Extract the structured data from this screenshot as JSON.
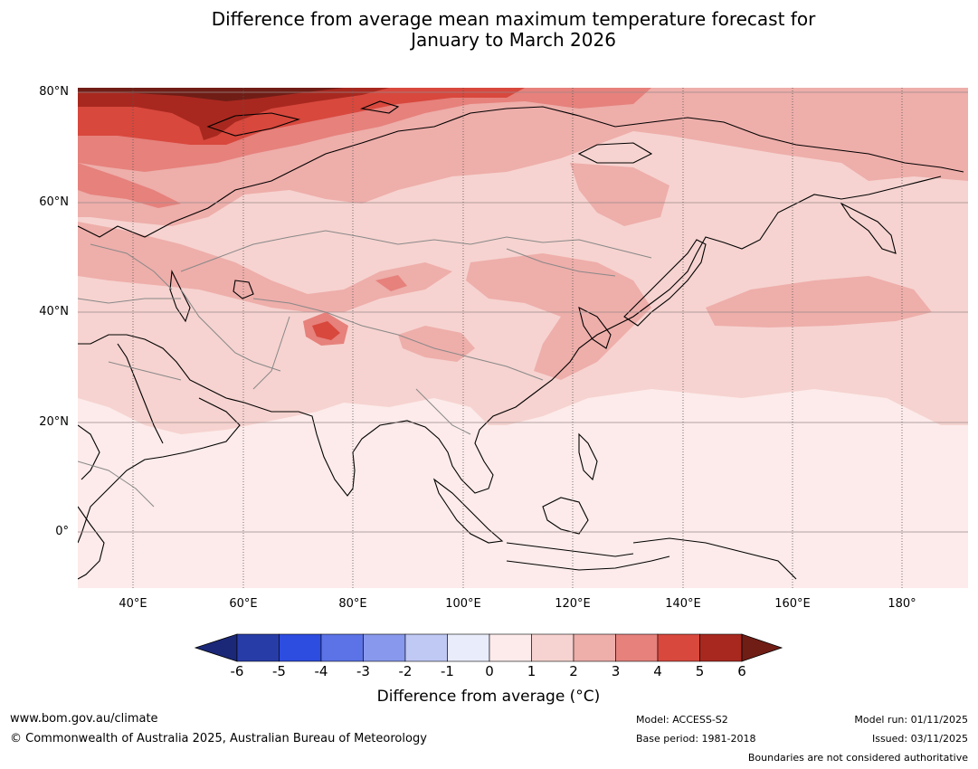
{
  "title": {
    "line1": "Difference from average mean maximum temperature forecast for",
    "line2": "January to March 2026"
  },
  "map": {
    "lat_labels": [
      "80°N",
      "60°N",
      "40°N",
      "20°N",
      "0°"
    ],
    "lon_labels": [
      "40°E",
      "60°E",
      "80°E",
      "100°E",
      "120°E",
      "140°E",
      "160°E",
      "180°"
    ]
  },
  "colorbar": {
    "ticks": [
      "-6",
      "-5",
      "-4",
      "-3",
      "-2",
      "-1",
      "0",
      "1",
      "2",
      "3",
      "4",
      "5",
      "6"
    ],
    "colors": [
      "#283ca8",
      "#2d4ce0",
      "#5b73e6",
      "#8898ec",
      "#c0c8f4",
      "#e9ecfa",
      "#fcebea",
      "#f6d3d0",
      "#eeaeaa",
      "#e6817c",
      "#d8483d",
      "#a8281f"
    ],
    "under_color": "#1b2878",
    "over_color": "#701d16",
    "label": "Difference from average (°C)"
  },
  "footer": {
    "website": "www.bom.gov.au/climate",
    "copyright": "© Commonwealth of Australia 2025, Australian Bureau of Meteorology",
    "model": "Model: ACCESS-S2",
    "base_period": "Base period: 1981-2018",
    "model_run": "Model run: 01/11/2025",
    "issued": "Issued: 03/11/2025",
    "boundaries_note": "Boundaries are not considered authoritative"
  }
}
